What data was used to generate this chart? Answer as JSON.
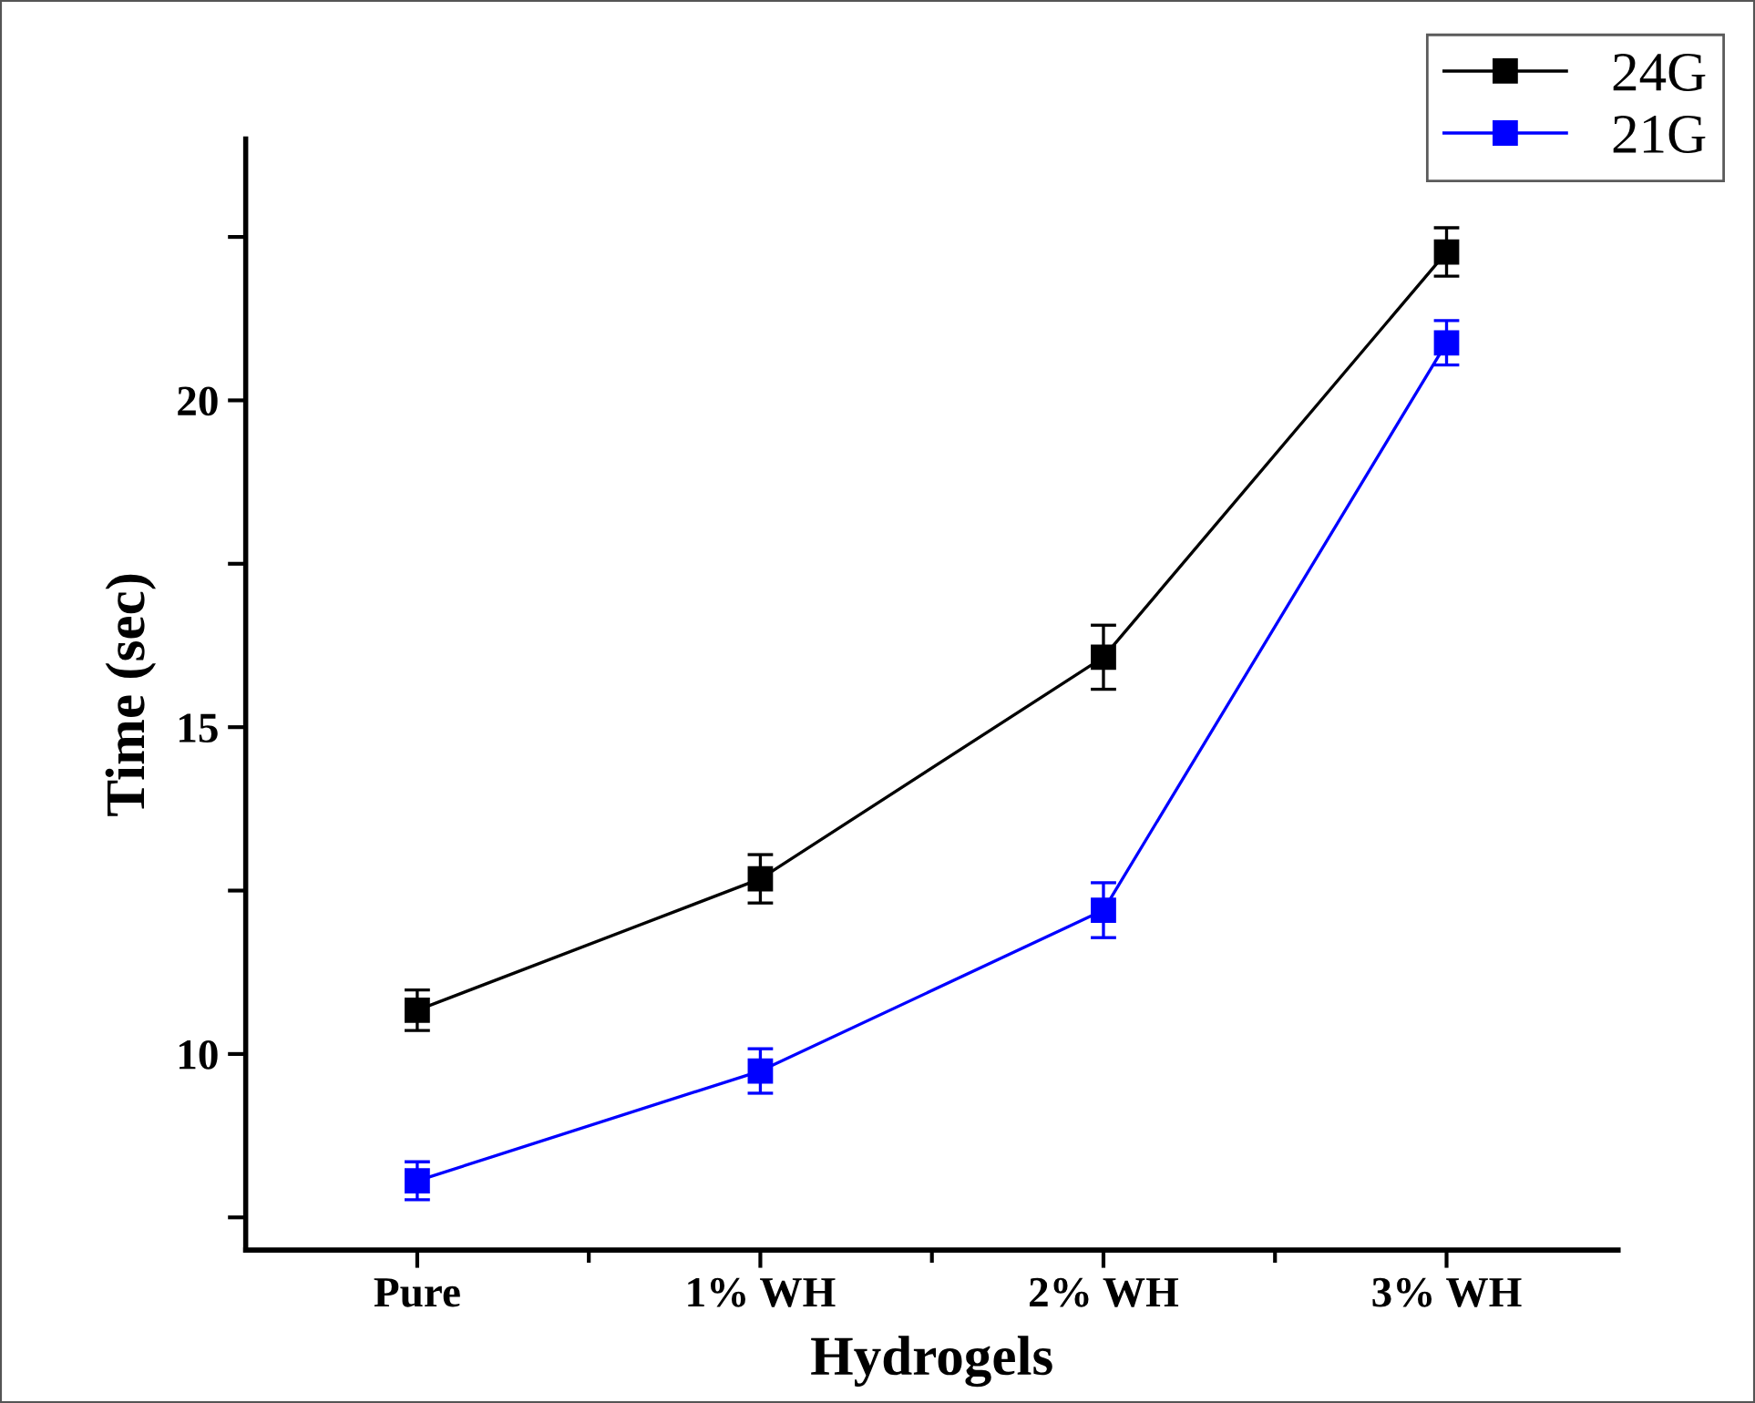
{
  "chart_data": {
    "type": "line",
    "xlabel": "Hydrogels",
    "ylabel": "Time (sec)",
    "categories": [
      "Pure",
      "1% WH",
      "2% WH",
      "3% WH"
    ],
    "series": [
      {
        "name": "24G",
        "color": "#000000",
        "values": [
          10.67,
          12.68,
          16.07,
          22.27
        ],
        "errors": [
          0.31,
          0.37,
          0.49,
          0.37
        ]
      },
      {
        "name": "21G",
        "color": "#0000ff",
        "values": [
          8.06,
          9.74,
          12.2,
          20.88
        ],
        "errors": [
          0.29,
          0.34,
          0.42,
          0.34
        ]
      }
    ],
    "ylim": [
      7,
      24
    ],
    "yticks": [
      {
        "value": 7.5,
        "label": null
      },
      10,
      {
        "value": 12.5,
        "label": null
      },
      15,
      {
        "value": 17.5,
        "label": null
      },
      20,
      {
        "value": 22.5,
        "label": null
      }
    ],
    "marker": "square",
    "line_style": "solid",
    "legend": "top right",
    "grid": false
  }
}
